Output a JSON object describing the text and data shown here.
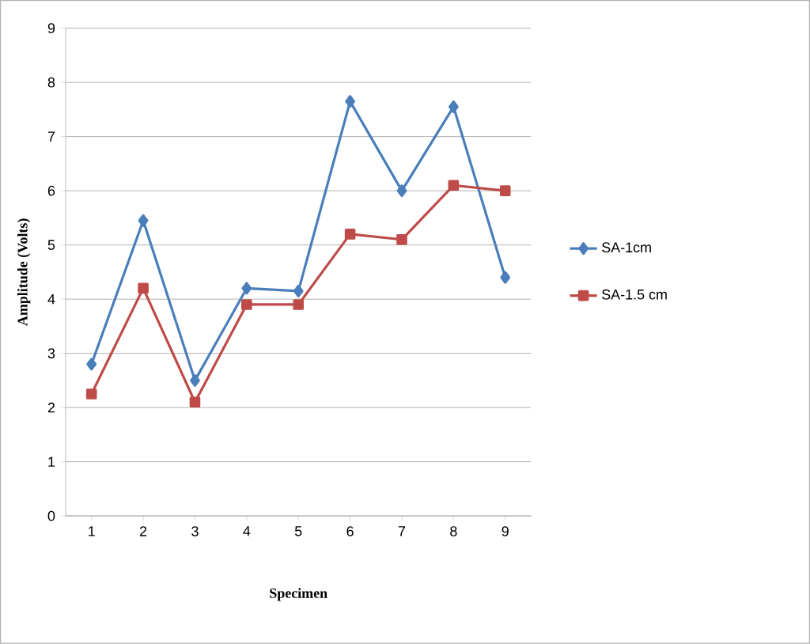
{
  "chart_data": {
    "type": "line",
    "xlabel": "Specimen",
    "ylabel": "Amplitude (Volts)",
    "categories": [
      "1",
      "2",
      "3",
      "4",
      "5",
      "6",
      "7",
      "8",
      "9"
    ],
    "series": [
      {
        "name": "SA-1cm",
        "color": "#4a7ebb",
        "marker": "diamond",
        "values": [
          2.8,
          5.45,
          2.5,
          4.2,
          4.15,
          7.65,
          6.0,
          7.55,
          4.4
        ]
      },
      {
        "name": "SA-1.5 cm",
        "color": "#be4b48",
        "marker": "square",
        "values": [
          2.25,
          4.2,
          2.1,
          3.9,
          3.9,
          5.2,
          5.1,
          6.1,
          6.0
        ]
      }
    ],
    "ylim": [
      0,
      9
    ],
    "yticks": [
      0,
      1,
      2,
      3,
      4,
      5,
      6,
      7,
      8,
      9
    ],
    "grid": "y",
    "legend": "right",
    "line_style": "solid"
  }
}
